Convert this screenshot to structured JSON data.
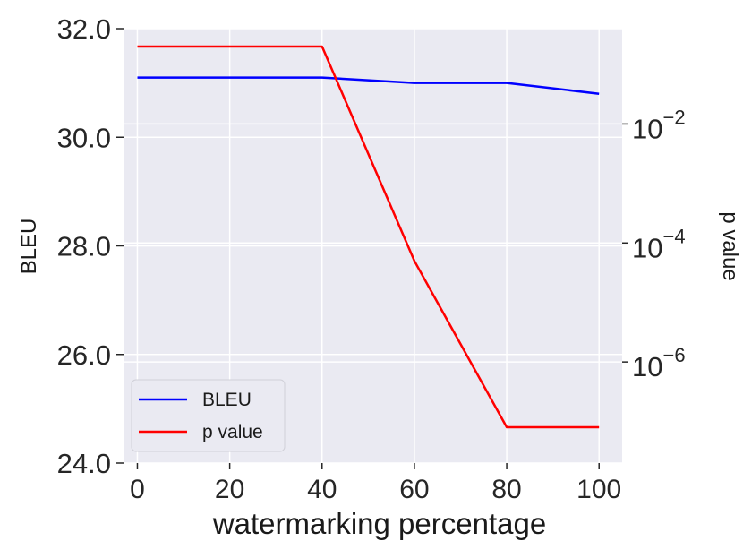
{
  "chart_data": {
    "type": "line",
    "x": [
      0,
      20,
      40,
      60,
      80,
      100
    ],
    "xlabel": "watermarking percentage",
    "xlim": [
      -3,
      105
    ],
    "xticks": [
      "0",
      "20",
      "40",
      "60",
      "80",
      "100"
    ],
    "ylabel": "BLEU",
    "ylim": [
      24.0,
      32.0
    ],
    "yticks": [
      "24.0",
      "26.0",
      "28.0",
      "30.0",
      "32.0"
    ],
    "y2label": "p value",
    "y2scale": "log",
    "y2lim": [
      2e-08,
      0.4
    ],
    "y2ticks": [
      {
        "base": "10",
        "exp": "−2"
      },
      {
        "base": "10",
        "exp": "−4"
      },
      {
        "base": "10",
        "exp": "−6"
      }
    ],
    "series": [
      {
        "name": "BLEU",
        "axis": "left",
        "color": "#0000ff",
        "values": [
          31.1,
          31.1,
          31.1,
          31.0,
          31.0,
          30.8
        ]
      },
      {
        "name": "p value",
        "axis": "right",
        "color": "#ff0000",
        "values": [
          0.2,
          0.2,
          0.2,
          5e-05,
          8e-08,
          8e-08
        ]
      }
    ],
    "legend_position": "lower-left",
    "grid": true,
    "background": "#eaeaf2",
    "grid_color": "#ffffff"
  }
}
